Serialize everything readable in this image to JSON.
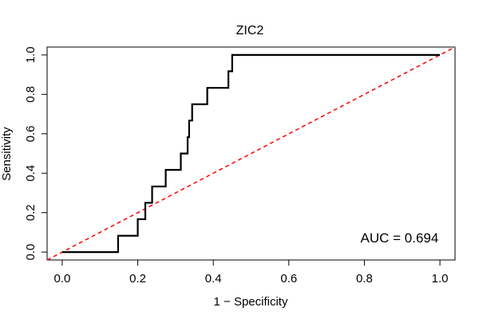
{
  "chart_data": {
    "type": "line",
    "title": "ZIC2",
    "xlabel": "1 − Specificity",
    "ylabel": "Sensitivity",
    "xlim": [
      -0.04,
      1.04
    ],
    "ylim": [
      -0.04,
      1.04
    ],
    "x_ticks": [
      0.0,
      0.2,
      0.4,
      0.6,
      0.8,
      1.0
    ],
    "x_tick_labels": [
      "0.0",
      "0.2",
      "0.4",
      "0.6",
      "0.8",
      "1.0"
    ],
    "y_ticks": [
      0.0,
      0.2,
      0.4,
      0.6,
      0.8,
      1.0
    ],
    "y_tick_labels": [
      "0.0",
      "0.2",
      "0.4",
      "0.6",
      "0.8",
      "1.0"
    ],
    "grid": false,
    "series": [
      {
        "color": "#000000",
        "style": "solid",
        "x": [
          0.0,
          0.148,
          0.148,
          0.2,
          0.2,
          0.22,
          0.22,
          0.238,
          0.238,
          0.274,
          0.274,
          0.314,
          0.314,
          0.332,
          0.332,
          0.336,
          0.336,
          0.344,
          0.344,
          0.384,
          0.384,
          0.44,
          0.44,
          0.45,
          0.45,
          1.0
        ],
        "y": [
          0.0,
          0.0,
          0.083,
          0.083,
          0.167,
          0.167,
          0.25,
          0.25,
          0.333,
          0.333,
          0.417,
          0.417,
          0.5,
          0.5,
          0.583,
          0.583,
          0.667,
          0.667,
          0.75,
          0.75,
          0.833,
          0.833,
          0.917,
          0.917,
          1.0,
          1.0
        ]
      },
      {
        "color": "#ff0000",
        "style": "dashed",
        "x": [
          -0.04,
          1.04
        ],
        "y": [
          -0.04,
          1.04
        ]
      }
    ],
    "annotations": [
      {
        "text": "AUC = 0.694",
        "x": 0.893,
        "y": 0.05
      }
    ]
  }
}
